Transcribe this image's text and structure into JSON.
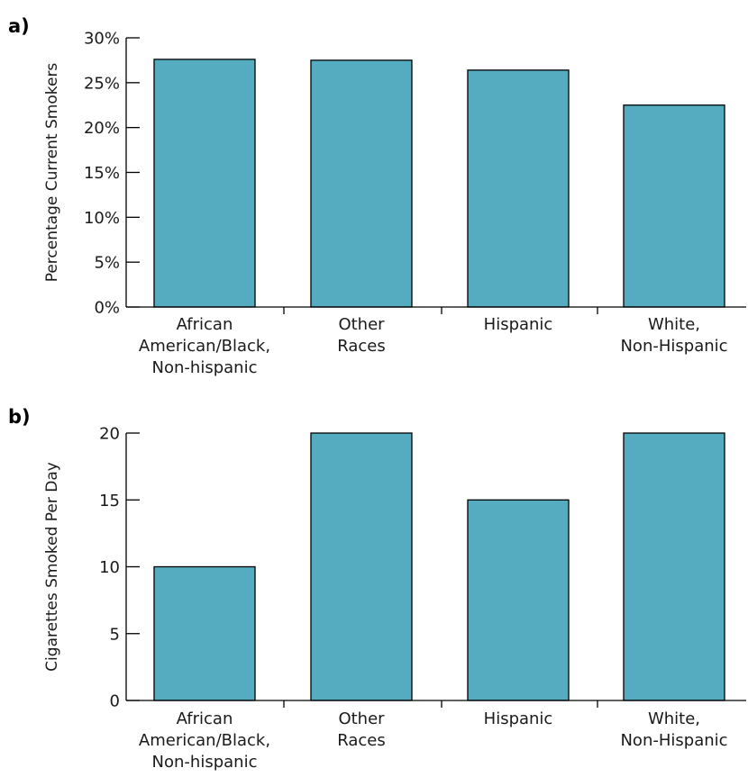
{
  "chart_data": [
    {
      "type": "bar",
      "panel_label": "a)",
      "categories": [
        [
          "African",
          "American/Black,",
          "Non-hispanic"
        ],
        [
          "Other",
          "Races"
        ],
        [
          "Hispanic"
        ],
        [
          "White,",
          "Non-Hispanic"
        ]
      ],
      "values": [
        27.6,
        27.5,
        26.4,
        22.5
      ],
      "ylabel": "Percentage Current Smokers",
      "ylim": [
        0,
        30
      ],
      "yticks": [
        0,
        5,
        10,
        15,
        20,
        25,
        30
      ],
      "ytick_labels": [
        "0%",
        "5%",
        "10%",
        "15%",
        "20%",
        "25%",
        "30%"
      ],
      "bar_color": "#55abbf",
      "grid": false
    },
    {
      "type": "bar",
      "panel_label": "b)",
      "categories": [
        [
          "African",
          "American/Black,",
          "Non-hispanic"
        ],
        [
          "Other",
          "Races"
        ],
        [
          "Hispanic"
        ],
        [
          "White,",
          "Non-Hispanic"
        ]
      ],
      "values": [
        10,
        20,
        15,
        20
      ],
      "ylabel": "Cigarettes Smoked Per Day",
      "ylim": [
        0,
        20
      ],
      "yticks": [
        0,
        5,
        10,
        15,
        20
      ],
      "ytick_labels": [
        "0",
        "5",
        "10",
        "15",
        "20"
      ],
      "bar_color": "#55abbf",
      "grid": false
    }
  ]
}
